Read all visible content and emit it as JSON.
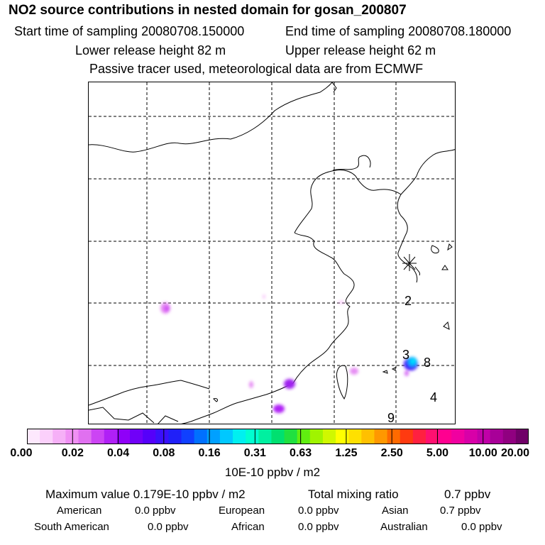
{
  "header": {
    "title": "NO2 source contributions in nested domain for gosan_200807",
    "start_label": "Start time of sampling 20080708.150000",
    "end_label": "End time of sampling 20080708.180000",
    "lower_height": "Lower release height   82 m",
    "upper_height": "Upper release height   62 m",
    "tracer_note": "Passive tracer used, meteorological data are from ECMWF"
  },
  "map": {
    "labels": [
      "2",
      "3",
      "8",
      "4",
      "9"
    ],
    "release_marker": "receptor-star-icon"
  },
  "colorbar": {
    "colors": [
      "#fde8fd",
      "#fbd0fb",
      "#f6b0f7",
      "#f090f4",
      "#e070f0",
      "#cc44f4",
      "#b020f6",
      "#8f00f8",
      "#7000f8",
      "#5500fa",
      "#3a10fb",
      "#2020f8",
      "#1040ff",
      "#0070ff",
      "#00a0ff",
      "#00c8ff",
      "#00f0f0",
      "#00ffd0",
      "#00f0a0",
      "#00e070",
      "#20e040",
      "#60ee10",
      "#a0f400",
      "#d0f800",
      "#ffff00",
      "#ffe000",
      "#ffc000",
      "#ff9800",
      "#ff6a00",
      "#ff3a10",
      "#ff2040",
      "#ff1070",
      "#ff0090",
      "#f000a0",
      "#d800a8",
      "#c000a8",
      "#a80098",
      "#900080",
      "#700068"
    ],
    "ticks": [
      "0.00",
      "0.02",
      "0.04",
      "0.08",
      "0.16",
      "0.31",
      "0.63",
      "1.25",
      "2.50",
      "5.00",
      "10.00",
      "20.00"
    ],
    "unit": "10E-10 ppbv / m2"
  },
  "summary": {
    "max_value": "Maximum value  0.179E-10 ppbv / m2",
    "total_label": "Total mixing ratio",
    "total_value": "0.7 ppbv",
    "american": {
      "label": "American",
      "value": "0.0 ppbv"
    },
    "european": {
      "label": "European",
      "value": "0.0 ppbv"
    },
    "asian": {
      "label": "Asian",
      "value": "0.7 ppbv"
    },
    "south_american": {
      "label": "South American",
      "value": "0.0 ppbv"
    },
    "african": {
      "label": "African",
      "value": "0.0 ppbv"
    },
    "australian": {
      "label": "Australian",
      "value": "0.0 ppbv"
    }
  }
}
